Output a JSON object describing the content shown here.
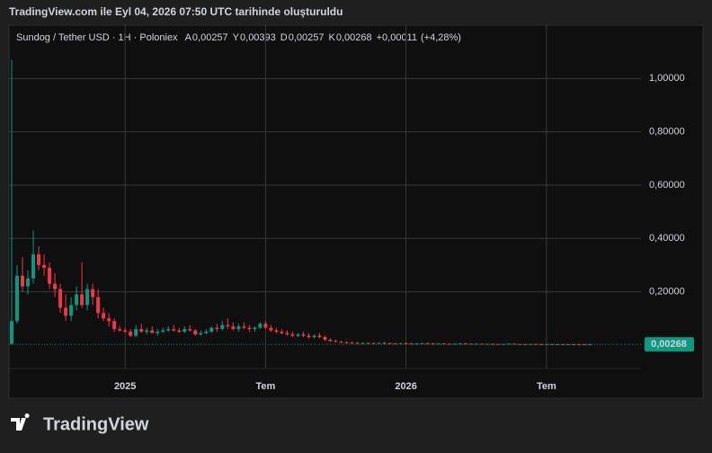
{
  "header": {
    "text": "TradingView.com ile Eyl 04, 2026 07:50 UTC tarihinde oluşturuldu"
  },
  "legend": {
    "symbol": "Sundog / Tether USD · 1H · Poloniex",
    "fields": [
      {
        "key": "A",
        "value": {
          "value": 0.00257,
          "label": "0,00257"
        }
      },
      {
        "key": "Y",
        "value": {
          "value": 0.00393,
          "label": "0,00393"
        }
      },
      {
        "key": "D",
        "value": {
          "value": 0.00257,
          "label": "0,00257"
        }
      },
      {
        "key": "K",
        "value": {
          "value": 0.00268,
          "label": "0,00268"
        }
      }
    ],
    "change": {
      "value": 0.00011,
      "label": "+0,00011"
    },
    "change_pct": {
      "value": 4.28,
      "label": "(+4,28%)"
    }
  },
  "logo": {
    "text": "TradingView"
  },
  "chart_data": {
    "type": "candlestick",
    "up_color": "#089981",
    "down_color": "#f23645",
    "grid": true,
    "xlim": [
      -0.5,
      116.5
    ],
    "xticks": [
      {
        "value": 21,
        "label": "2025"
      },
      {
        "value": 47,
        "label": "Tem"
      },
      {
        "value": 73,
        "label": "2026"
      },
      {
        "value": 99,
        "label": "Tem"
      }
    ],
    "ylim": [
      -0.088,
      1.2
    ],
    "yticks": [
      {
        "value": 0.2,
        "label": "0,20000"
      },
      {
        "value": 0.4,
        "label": "0,40000"
      },
      {
        "value": 0.6,
        "label": "0,60000"
      },
      {
        "value": 0.8,
        "label": "0,80000"
      },
      {
        "value": 1,
        "label": "1,00000"
      }
    ],
    "last_price": {
      "value": 0.00268,
      "label": "0,00268"
    },
    "open": [
      0.005,
      0.09,
      0.26,
      0.22,
      0.25,
      0.34,
      0.3,
      0.29,
      0.23,
      0.21,
      0.14,
      0.11,
      0.15,
      0.19,
      0.15,
      0.21,
      0.18,
      0.12,
      0.1,
      0.09,
      0.06,
      0.055,
      0.05,
      0.035,
      0.06,
      0.05,
      0.055,
      0.045,
      0.05,
      0.055,
      0.06,
      0.055,
      0.05,
      0.06,
      0.055,
      0.04,
      0.045,
      0.05,
      0.065,
      0.06,
      0.075,
      0.07,
      0.06,
      0.07,
      0.065,
      0.06,
      0.065,
      0.08,
      0.065,
      0.055,
      0.05,
      0.045,
      0.04,
      0.035,
      0.04,
      0.035,
      0.03,
      0.035,
      0.03,
      0.02,
      0.015,
      0.012,
      0.01,
      0.009,
      0.008,
      0.007,
      0.008,
      0.007,
      0.006,
      0.008,
      0.007,
      0.006,
      0.005,
      0.007,
      0.006,
      0.005,
      0.006,
      0.007,
      0.006,
      0.005,
      0.006,
      0.005,
      0.004,
      0.005,
      0.006,
      0.005,
      0.004,
      0.005,
      0.004,
      0.0045,
      0.004,
      0.0035,
      0.004,
      0.005,
      0.004,
      0.0035,
      0.003,
      0.004,
      0.0035,
      0.003,
      0.0035,
      0.003,
      0.0032,
      0.0029,
      0.0031,
      0.0028,
      0.0027,
      0.00257
    ],
    "high": [
      1.07,
      0.3,
      0.33,
      0.28,
      0.43,
      0.37,
      0.34,
      0.31,
      0.27,
      0.23,
      0.19,
      0.18,
      0.22,
      0.31,
      0.23,
      0.23,
      0.21,
      0.14,
      0.12,
      0.1,
      0.07,
      0.065,
      0.06,
      0.075,
      0.08,
      0.065,
      0.07,
      0.06,
      0.065,
      0.07,
      0.075,
      0.065,
      0.07,
      0.075,
      0.06,
      0.055,
      0.06,
      0.07,
      0.08,
      0.09,
      0.1,
      0.085,
      0.08,
      0.085,
      0.075,
      0.07,
      0.085,
      0.09,
      0.075,
      0.065,
      0.06,
      0.055,
      0.05,
      0.045,
      0.05,
      0.045,
      0.04,
      0.045,
      0.035,
      0.025,
      0.02,
      0.016,
      0.014,
      0.012,
      0.011,
      0.01,
      0.01,
      0.009,
      0.009,
      0.012,
      0.009,
      0.008,
      0.008,
      0.01,
      0.008,
      0.007,
      0.008,
      0.009,
      0.008,
      0.007,
      0.007,
      0.006,
      0.006,
      0.007,
      0.008,
      0.006,
      0.006,
      0.006,
      0.005,
      0.006,
      0.005,
      0.005,
      0.006,
      0.006,
      0.005,
      0.0045,
      0.0045,
      0.005,
      0.0045,
      0.004,
      0.0045,
      0.004,
      0.004,
      0.0036,
      0.0037,
      0.0034,
      0.0032,
      0.00393
    ],
    "low": [
      0.003,
      0.08,
      0.2,
      0.19,
      0.23,
      0.28,
      0.26,
      0.21,
      0.18,
      0.12,
      0.09,
      0.09,
      0.13,
      0.14,
      0.13,
      0.15,
      0.1,
      0.09,
      0.07,
      0.05,
      0.05,
      0.045,
      0.03,
      0.03,
      0.045,
      0.04,
      0.045,
      0.035,
      0.045,
      0.05,
      0.05,
      0.045,
      0.045,
      0.05,
      0.035,
      0.035,
      0.04,
      0.045,
      0.05,
      0.055,
      0.06,
      0.055,
      0.05,
      0.06,
      0.05,
      0.05,
      0.06,
      0.06,
      0.05,
      0.045,
      0.04,
      0.035,
      0.03,
      0.03,
      0.03,
      0.025,
      0.025,
      0.025,
      0.015,
      0.012,
      0.01,
      0.008,
      0.007,
      0.006,
      0.006,
      0.005,
      0.006,
      0.005,
      0.005,
      0.006,
      0.005,
      0.004,
      0.004,
      0.005,
      0.004,
      0.004,
      0.005,
      0.005,
      0.004,
      0.004,
      0.004,
      0.003,
      0.003,
      0.004,
      0.004,
      0.003,
      0.003,
      0.003,
      0.003,
      0.003,
      0.003,
      0.003,
      0.003,
      0.003,
      0.003,
      0.0025,
      0.0025,
      0.003,
      0.0025,
      0.0025,
      0.0025,
      0.0025,
      0.0026,
      0.0025,
      0.0026,
      0.0025,
      0.0025,
      0.00257
    ],
    "close": [
      0.09,
      0.26,
      0.22,
      0.25,
      0.34,
      0.3,
      0.29,
      0.23,
      0.21,
      0.14,
      0.11,
      0.15,
      0.19,
      0.15,
      0.21,
      0.18,
      0.12,
      0.1,
      0.09,
      0.06,
      0.055,
      0.05,
      0.035,
      0.06,
      0.05,
      0.055,
      0.045,
      0.05,
      0.055,
      0.06,
      0.055,
      0.05,
      0.06,
      0.055,
      0.04,
      0.045,
      0.05,
      0.065,
      0.06,
      0.075,
      0.07,
      0.06,
      0.07,
      0.065,
      0.06,
      0.065,
      0.08,
      0.065,
      0.055,
      0.05,
      0.045,
      0.04,
      0.035,
      0.04,
      0.035,
      0.03,
      0.035,
      0.03,
      0.02,
      0.015,
      0.012,
      0.01,
      0.009,
      0.008,
      0.007,
      0.008,
      0.007,
      0.006,
      0.008,
      0.007,
      0.006,
      0.005,
      0.007,
      0.006,
      0.005,
      0.006,
      0.007,
      0.006,
      0.005,
      0.006,
      0.005,
      0.004,
      0.005,
      0.006,
      0.005,
      0.004,
      0.005,
      0.004,
      0.0045,
      0.004,
      0.0035,
      0.004,
      0.005,
      0.004,
      0.0035,
      0.003,
      0.004,
      0.0035,
      0.003,
      0.0035,
      0.003,
      0.0032,
      0.0029,
      0.0031,
      0.0028,
      0.0027,
      0.00257,
      0.00268
    ]
  }
}
